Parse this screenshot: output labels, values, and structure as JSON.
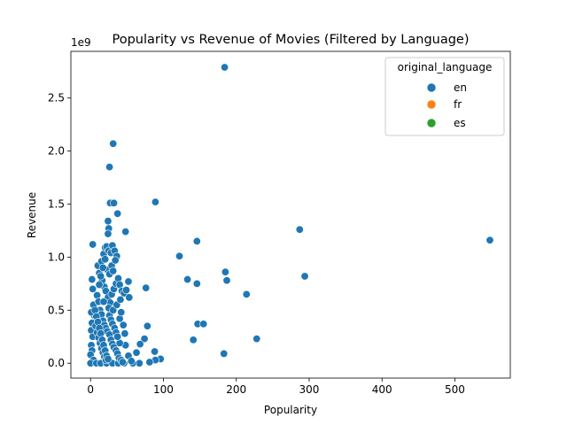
{
  "chart_data": {
    "type": "scatter",
    "title": "Popularity vs Revenue of Movies (Filtered by Language)",
    "xlabel": "Popularity",
    "ylabel": "Revenue",
    "y_offset_label": "1e9",
    "xlim": [
      -27,
      576
    ],
    "ylim": [
      -0.14,
      2.94
    ],
    "x_ticks": [
      0,
      100,
      200,
      300,
      400,
      500
    ],
    "y_ticks": [
      0.0,
      0.5,
      1.0,
      1.5,
      2.0,
      2.5
    ],
    "y_tick_labels": [
      "0.0",
      "0.5",
      "1.0",
      "1.5",
      "2.0",
      "2.5"
    ],
    "grid": false,
    "legend": {
      "title": "original_language",
      "placement": "top-right",
      "entries": [
        {
          "name": "en",
          "color": "#1f77b4"
        },
        {
          "name": "fr",
          "color": "#ff7f0e"
        },
        {
          "name": "es",
          "color": "#2ca02c"
        }
      ]
    },
    "series": [
      {
        "name": "en",
        "color": "#1f77b4",
        "points": [
          [
            184,
            2.79
          ],
          [
            31,
            2.07
          ],
          [
            26,
            1.85
          ],
          [
            89,
            1.52
          ],
          [
            27,
            1.51
          ],
          [
            32,
            1.51
          ],
          [
            37,
            1.41
          ],
          [
            24,
            1.34
          ],
          [
            25,
            1.27
          ],
          [
            24,
            1.22
          ],
          [
            48,
            1.24
          ],
          [
            287,
            1.26
          ],
          [
            548,
            1.16
          ],
          [
            146,
            1.15
          ],
          [
            122,
            1.01
          ],
          [
            294,
            0.82
          ],
          [
            185,
            0.86
          ],
          [
            187,
            0.78
          ],
          [
            133,
            0.79
          ],
          [
            146,
            0.75
          ],
          [
            214,
            0.65
          ],
          [
            76,
            0.71
          ],
          [
            147,
            0.37
          ],
          [
            155,
            0.37
          ],
          [
            141,
            0.22
          ],
          [
            228,
            0.23
          ],
          [
            183,
            0.09
          ],
          [
            78,
            0.35
          ],
          [
            74,
            0.23
          ],
          [
            68,
            0.18
          ],
          [
            63,
            0.1
          ],
          [
            88,
            0.11
          ],
          [
            96,
            0.04
          ],
          [
            89,
            0.03
          ],
          [
            81,
            0.01
          ],
          [
            67,
            0.0
          ],
          [
            58,
            0.0
          ],
          [
            52,
            0.07
          ],
          [
            56,
            0.02
          ],
          [
            48,
            0.17
          ],
          [
            40,
            0.19
          ],
          [
            3,
            1.12
          ],
          [
            2,
            0.79
          ],
          [
            3,
            0.7
          ],
          [
            4,
            0.55
          ],
          [
            5,
            0.45
          ],
          [
            1,
            0.48
          ],
          [
            2,
            0.38
          ],
          [
            1,
            0.31
          ],
          [
            3,
            0.25
          ],
          [
            1,
            0.17
          ],
          [
            2,
            0.12
          ],
          [
            0,
            0.08
          ],
          [
            4,
            0.03
          ],
          [
            0,
            0.0
          ],
          [
            8,
            0.0
          ],
          [
            14,
            0.0
          ],
          [
            22,
            0.0
          ],
          [
            30,
            0.0
          ],
          [
            38,
            0.0
          ],
          [
            46,
            0.0
          ],
          [
            10,
            0.92
          ],
          [
            12,
            0.85
          ],
          [
            15,
            0.96
          ],
          [
            18,
            1.03
          ],
          [
            20,
            1.09
          ],
          [
            22,
            1.1
          ],
          [
            25,
            1.06
          ],
          [
            28,
            1.04
          ],
          [
            30,
            1.11
          ],
          [
            33,
            1.06
          ],
          [
            36,
            1.01
          ],
          [
            16,
            0.78
          ],
          [
            19,
            0.72
          ],
          [
            21,
            0.68
          ],
          [
            24,
            0.62
          ],
          [
            27,
            0.57
          ],
          [
            29,
            0.65
          ],
          [
            32,
            0.7
          ],
          [
            35,
            0.75
          ],
          [
            38,
            0.8
          ],
          [
            40,
            0.74
          ],
          [
            43,
            0.68
          ],
          [
            46,
            0.66
          ],
          [
            49,
            0.69
          ],
          [
            52,
            0.77
          ],
          [
            53,
            0.62
          ],
          [
            9,
            0.64
          ],
          [
            11,
            0.58
          ],
          [
            13,
            0.5
          ],
          [
            15,
            0.46
          ],
          [
            17,
            0.4
          ],
          [
            19,
            0.36
          ],
          [
            21,
            0.33
          ],
          [
            23,
            0.3
          ],
          [
            26,
            0.27
          ],
          [
            28,
            0.22
          ],
          [
            30,
            0.18
          ],
          [
            32,
            0.15
          ],
          [
            35,
            0.12
          ],
          [
            37,
            0.09
          ],
          [
            39,
            0.05
          ],
          [
            42,
            0.03
          ],
          [
            44,
            0.01
          ],
          [
            7,
            0.35
          ],
          [
            9,
            0.29
          ],
          [
            11,
            0.24
          ],
          [
            13,
            0.19
          ],
          [
            15,
            0.14
          ],
          [
            17,
            0.1
          ],
          [
            19,
            0.06
          ],
          [
            21,
            0.03
          ],
          [
            6,
            0.5
          ],
          [
            8,
            0.44
          ],
          [
            10,
            0.39
          ],
          [
            12,
            0.33
          ],
          [
            14,
            0.28
          ],
          [
            16,
            0.22
          ],
          [
            18,
            0.17
          ],
          [
            20,
            0.12
          ],
          [
            22,
            0.07
          ],
          [
            24,
            0.04
          ],
          [
            26,
            0.45
          ],
          [
            28,
            0.41
          ],
          [
            30,
            0.37
          ],
          [
            33,
            0.33
          ],
          [
            35,
            0.29
          ],
          [
            37,
            0.25
          ],
          [
            40,
            0.42
          ],
          [
            42,
            0.48
          ],
          [
            45,
            0.36
          ],
          [
            47,
            0.28
          ],
          [
            23,
            0.88
          ],
          [
            26,
            0.84
          ],
          [
            29,
            0.92
          ],
          [
            31,
            0.87
          ],
          [
            34,
            0.97
          ],
          [
            20,
            0.98
          ],
          [
            17,
            0.9
          ],
          [
            14,
            0.82
          ],
          [
            12,
            0.74
          ],
          [
            18,
            0.58
          ],
          [
            25,
            0.52
          ],
          [
            31,
            0.5
          ],
          [
            36,
            0.55
          ],
          [
            41,
            0.6
          ]
        ]
      }
    ]
  }
}
